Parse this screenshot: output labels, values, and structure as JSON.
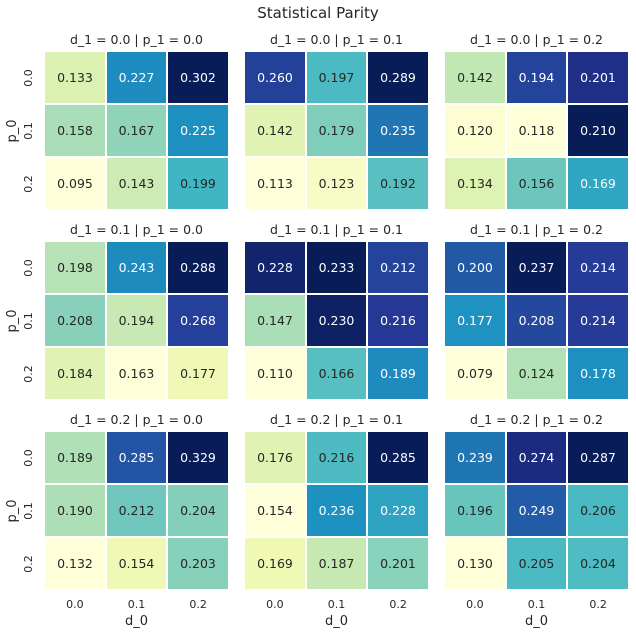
{
  "figure": {
    "suptitle": "Statistical Parity"
  },
  "chart_data": {
    "type": "heatmap",
    "title": "Statistical Parity",
    "xlabel": "d_0",
    "ylabel": "p_0",
    "x_ticks": [
      "0.0",
      "0.1",
      "0.2"
    ],
    "y_ticks": [
      "0.0",
      "0.1",
      "0.2"
    ],
    "colormap": "YlGnBu",
    "colorbar": false,
    "panels": [
      {
        "title": "d_1 = 0.0 | p_1 = 0.0",
        "values": [
          [
            0.133,
            0.227,
            0.302
          ],
          [
            0.158,
            0.167,
            0.225
          ],
          [
            0.095,
            0.143,
            0.199
          ]
        ]
      },
      {
        "title": "d_1 = 0.0 | p_1 = 0.1",
        "values": [
          [
            0.26,
            0.197,
            0.289
          ],
          [
            0.142,
            0.179,
            0.235
          ],
          [
            0.113,
            0.123,
            0.192
          ]
        ]
      },
      {
        "title": "d_1 = 0.0 | p_1 = 0.2",
        "values": [
          [
            0.142,
            0.194,
            0.201
          ],
          [
            0.12,
            0.118,
            0.21
          ],
          [
            0.134,
            0.156,
            0.169
          ]
        ]
      },
      {
        "title": "d_1 = 0.1 | p_1 = 0.0",
        "values": [
          [
            0.198,
            0.243,
            0.288
          ],
          [
            0.208,
            0.194,
            0.268
          ],
          [
            0.184,
            0.163,
            0.177
          ]
        ]
      },
      {
        "title": "d_1 = 0.1 | p_1 = 0.1",
        "values": [
          [
            0.228,
            0.233,
            0.212
          ],
          [
            0.147,
            0.23,
            0.216
          ],
          [
            0.11,
            0.166,
            0.189
          ]
        ]
      },
      {
        "title": "d_1 = 0.1 | p_1 = 0.2",
        "values": [
          [
            0.2,
            0.237,
            0.214
          ],
          [
            0.177,
            0.208,
            0.214
          ],
          [
            0.079,
            0.124,
            0.178
          ]
        ]
      },
      {
        "title": "d_1 = 0.2 | p_1 = 0.0",
        "values": [
          [
            0.189,
            0.285,
            0.329
          ],
          [
            0.19,
            0.212,
            0.204
          ],
          [
            0.132,
            0.154,
            0.203
          ]
        ]
      },
      {
        "title": "d_1 = 0.2 | p_1 = 0.1",
        "values": [
          [
            0.176,
            0.216,
            0.285
          ],
          [
            0.154,
            0.236,
            0.228
          ],
          [
            0.169,
            0.187,
            0.201
          ]
        ]
      },
      {
        "title": "d_1 = 0.2 | p_1 = 0.2",
        "values": [
          [
            0.239,
            0.274,
            0.287
          ],
          [
            0.196,
            0.249,
            0.206
          ],
          [
            0.13,
            0.205,
            0.204
          ]
        ]
      }
    ]
  }
}
